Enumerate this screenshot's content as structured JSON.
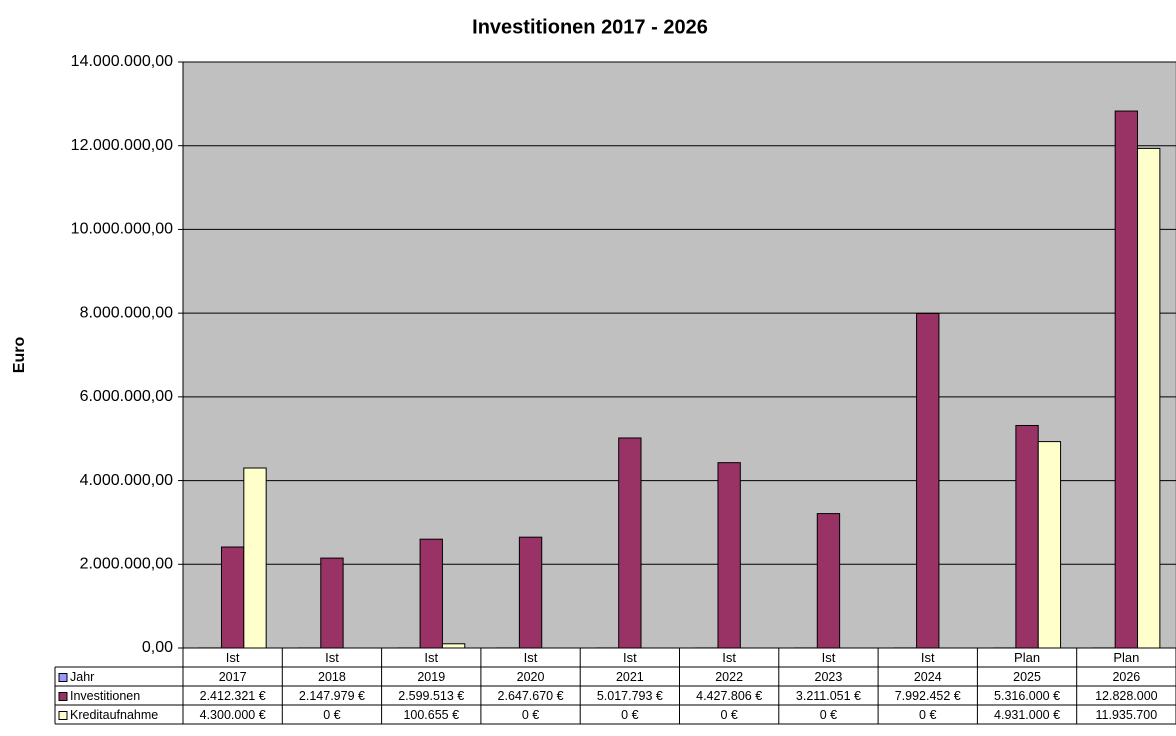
{
  "chart_data": {
    "type": "bar",
    "title": "Investitionen 2017 - 2026",
    "ylabel": "Euro",
    "categories": [
      "Ist",
      "Ist",
      "Ist",
      "Ist",
      "Ist",
      "Ist",
      "Ist",
      "Ist",
      "Plan",
      "Plan"
    ],
    "series": [
      {
        "name": "Jahr",
        "color": "#9999ff",
        "values": [
          2017,
          2018,
          2019,
          2020,
          2021,
          2022,
          2023,
          2024,
          2025,
          2026
        ]
      },
      {
        "name": "Investitionen",
        "color": "#993366",
        "values": [
          2412321,
          2147979,
          2599513,
          2647670,
          5017793,
          4427806,
          3211051,
          7992452,
          5316000,
          12828000
        ],
        "value_labels": [
          "2.412.321 €",
          "2.147.979 €",
          "2.599.513 €",
          "2.647.670 €",
          "5.017.793 €",
          "4.427.806 €",
          "3.211.051 €",
          "7.992.452 €",
          "5.316.000 €",
          "12.828.000"
        ]
      },
      {
        "name": "Kreditaufnahme",
        "color": "#ffffcc",
        "values": [
          4300000,
          0,
          100655,
          0,
          0,
          0,
          0,
          0,
          4931000,
          11935700
        ],
        "value_labels": [
          "4.300.000 €",
          "0 €",
          "100.655 €",
          "0 €",
          "0 €",
          "0 €",
          "0 €",
          "0 €",
          "4.931.000 €",
          "11.935.700"
        ]
      }
    ],
    "ylim": [
      0,
      14000000
    ],
    "yticks": [
      {
        "value": 0,
        "label": "0,00"
      },
      {
        "value": 2000000,
        "label": "2.000.000,00"
      },
      {
        "value": 4000000,
        "label": "4.000.000,00"
      },
      {
        "value": 6000000,
        "label": "6.000.000,00"
      },
      {
        "value": 8000000,
        "label": "8.000.000,00"
      },
      {
        "value": 10000000,
        "label": "10.000.000,00"
      },
      {
        "value": 12000000,
        "label": "12.000.000,00"
      },
      {
        "value": 14000000,
        "label": "14.000.000,00"
      }
    ],
    "grid": true,
    "plot_background": "#c0c0c0"
  }
}
